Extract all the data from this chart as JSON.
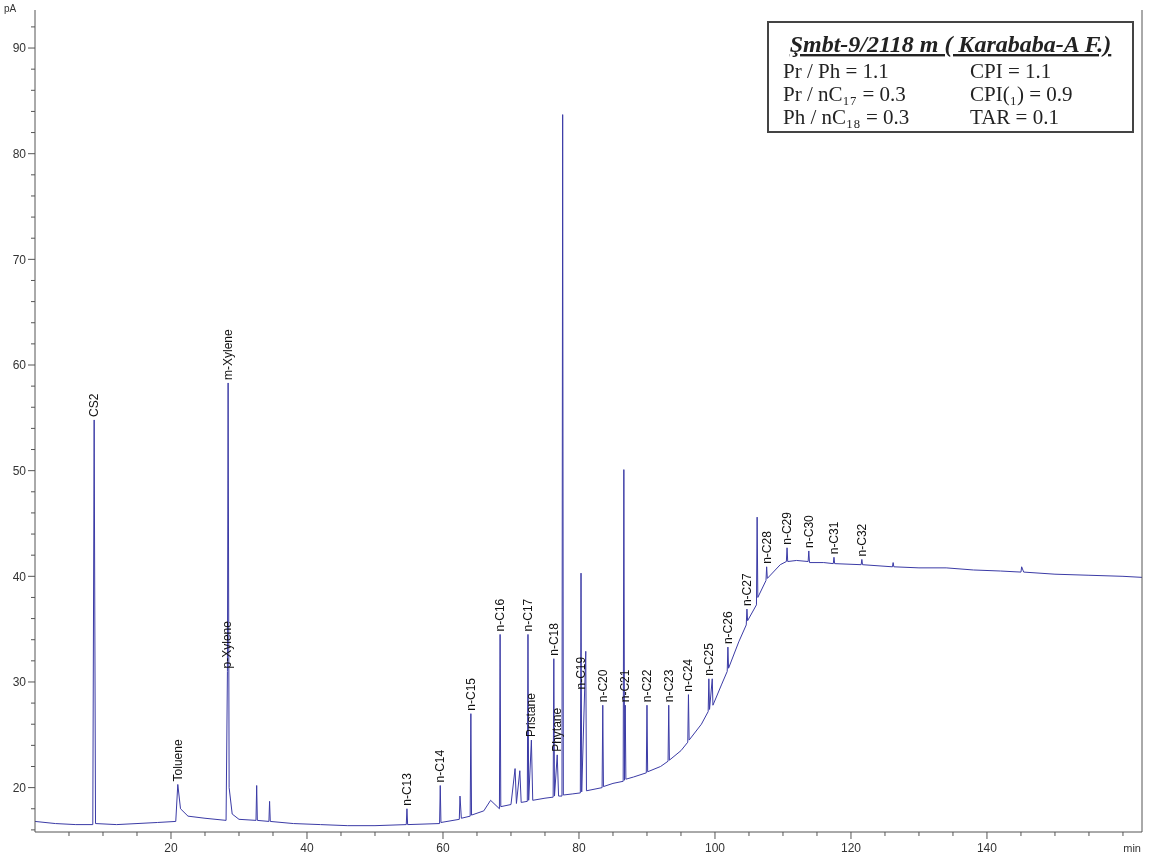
{
  "chart_data": {
    "type": "line",
    "title": "Şmbt-9/2118 m ( Karababa-A F.)",
    "xlabel": "min",
    "ylabel": "pA",
    "xlim": [
      0,
      162.8
    ],
    "ylim": [
      15.8,
      93.6
    ],
    "xticks": [
      {
        "value": 5,
        "label": null
      },
      {
        "value": 10,
        "label": null
      },
      {
        "value": 15,
        "label": null
      },
      20,
      {
        "value": 25,
        "label": null
      },
      {
        "value": 30,
        "label": null
      },
      {
        "value": 35,
        "label": null
      },
      40,
      {
        "value": 45,
        "label": null
      },
      {
        "value": 50,
        "label": null
      },
      {
        "value": 55,
        "label": null
      },
      60,
      {
        "value": 65,
        "label": null
      },
      {
        "value": 70,
        "label": null
      },
      {
        "value": 75,
        "label": null
      },
      80,
      {
        "value": 85,
        "label": null
      },
      {
        "value": 90,
        "label": null
      },
      {
        "value": 95,
        "label": null
      },
      100,
      {
        "value": 105,
        "label": null
      },
      {
        "value": 110,
        "label": null
      },
      {
        "value": 115,
        "label": null
      },
      120,
      {
        "value": 125,
        "label": null
      },
      {
        "value": 130,
        "label": null
      },
      {
        "value": 135,
        "label": null
      },
      140,
      {
        "value": 145,
        "label": null
      },
      {
        "value": 150,
        "label": null
      },
      {
        "value": 155,
        "label": null
      },
      {
        "value": 160,
        "label": null
      }
    ],
    "yticks": [
      {
        "value": 16,
        "label": null
      },
      {
        "value": 18,
        "label": null
      },
      20,
      {
        "value": 22,
        "label": null
      },
      {
        "value": 24,
        "label": null
      },
      {
        "value": 26,
        "label": null
      },
      {
        "value": 28,
        "label": null
      },
      30,
      {
        "value": 32,
        "label": null
      },
      {
        "value": 34,
        "label": null
      },
      {
        "value": 36,
        "label": null
      },
      {
        "value": 38,
        "label": null
      },
      40,
      {
        "value": 42,
        "label": null
      },
      {
        "value": 44,
        "label": null
      },
      {
        "value": 46,
        "label": null
      },
      {
        "value": 48,
        "label": null
      },
      50,
      {
        "value": 52,
        "label": null
      },
      {
        "value": 54,
        "label": null
      },
      {
        "value": 56,
        "label": null
      },
      {
        "value": 58,
        "label": null
      },
      60,
      {
        "value": 62,
        "label": null
      },
      {
        "value": 64,
        "label": null
      },
      {
        "value": 66,
        "label": null
      },
      {
        "value": 68,
        "label": null
      },
      70,
      {
        "value": 72,
        "label": null
      },
      {
        "value": 74,
        "label": null
      },
      {
        "value": 76,
        "label": null
      },
      {
        "value": 78,
        "label": null
      },
      80,
      {
        "value": 82,
        "label": null
      },
      {
        "value": 84,
        "label": null
      },
      {
        "value": 86,
        "label": null
      },
      {
        "value": 88,
        "label": null
      },
      90,
      {
        "value": 92,
        "label": null
      }
    ],
    "grid": false,
    "marker": "none",
    "line_style": "solid",
    "series": [
      {
        "color": "#3b3ba6",
        "x": [
          0,
          3,
          6,
          8.5,
          8.7,
          8.9,
          12,
          15,
          18,
          20.7,
          21.0,
          21.4,
          22.5,
          25,
          28.1,
          28.3,
          28.4,
          28.55,
          29,
          30,
          32.5,
          32.6,
          32.7,
          34.4,
          34.5,
          34.6,
          38,
          42,
          46,
          50,
          54.6,
          54.7,
          54.8,
          59.5,
          59.6,
          59.7,
          62.4,
          62.5,
          62.7,
          64.0,
          64.1,
          64.2,
          66,
          67,
          68.3,
          68.4,
          68.5,
          70,
          70.6,
          70.8,
          71.3,
          71.5,
          72.4,
          72.5,
          72.6,
          73.0,
          73.2,
          75,
          76.2,
          76.3,
          76.4,
          76.8,
          77.0,
          77.5,
          77.6,
          77.7,
          79,
          80.2,
          80.3,
          80.4,
          81.0,
          81.1,
          83.4,
          83.5,
          83.6,
          85,
          86.5,
          86.6,
          86.7,
          86.8,
          86.9,
          88,
          89.9,
          90.0,
          90.1,
          92,
          93.1,
          93.2,
          93.3,
          95,
          96.0,
          96.1,
          96.2,
          98,
          99.0,
          99.1,
          99.2,
          99.6,
          99.7,
          101,
          101.8,
          101.9,
          102.0,
          103.5,
          104.6,
          104.7,
          104.8,
          106.1,
          106.2,
          106.3,
          107.5,
          107.6,
          107.7,
          109.6,
          110.5,
          110.6,
          110.7,
          112,
          113.7,
          113.8,
          113.9,
          116,
          117.4,
          117.5,
          117.6,
          121.5,
          121.6,
          121.7,
          126.1,
          126.2,
          126.3,
          130,
          134,
          138,
          142,
          145.0,
          145.1,
          145.4,
          150,
          155,
          160,
          162.8
        ],
        "values": [
          16.8,
          16.6,
          16.5,
          16.5,
          54.8,
          16.6,
          16.5,
          16.6,
          16.7,
          16.8,
          20.3,
          18.0,
          17.3,
          17.1,
          16.9,
          31.0,
          58.3,
          20.0,
          17.5,
          17.0,
          16.9,
          20.2,
          16.9,
          16.8,
          18.7,
          16.8,
          16.6,
          16.5,
          16.4,
          16.4,
          16.5,
          18.0,
          16.5,
          16.6,
          20.2,
          16.7,
          17.0,
          19.2,
          17.1,
          17.3,
          27.0,
          17.4,
          17.8,
          18.8,
          18.0,
          34.5,
          18.2,
          18.4,
          21.8,
          18.5,
          21.6,
          18.6,
          18.7,
          34.5,
          18.8,
          24.5,
          18.8,
          19.0,
          19.1,
          32.2,
          19.2,
          23.1,
          19.2,
          19.2,
          83.7,
          19.3,
          19.4,
          19.5,
          40.3,
          19.6,
          32.9,
          19.7,
          20.0,
          27.8,
          20.1,
          20.4,
          20.6,
          50.1,
          20.7,
          27.8,
          20.8,
          21.0,
          21.4,
          27.8,
          21.5,
          22.0,
          22.5,
          27.8,
          22.6,
          23.5,
          24.3,
          28.8,
          24.5,
          26.0,
          27.2,
          30.3,
          27.4,
          30.3,
          27.8,
          29.8,
          31.0,
          33.3,
          31.3,
          33.8,
          35.4,
          36.9,
          35.8,
          37.3,
          45.6,
          38.0,
          39.6,
          40.9,
          39.8,
          41.1,
          41.4,
          42.7,
          41.4,
          41.5,
          41.4,
          42.4,
          41.3,
          41.3,
          41.2,
          41.8,
          41.2,
          41.1,
          41.6,
          41.1,
          40.9,
          41.3,
          40.9,
          40.8,
          40.8,
          40.6,
          40.5,
          40.4,
          40.9,
          40.4,
          40.2,
          40.1,
          40.0,
          39.9
        ]
      }
    ],
    "annotations": [
      "Pr / Ph = 1.1",
      "CPI = 1.1",
      "Pr / nC₁₇ = 0.3",
      "CPI(₁) = 0.9",
      "Ph / nC₁₈ = 0.3",
      "TAR = 0.1",
      {
        "text": "CS2",
        "x": 8.7,
        "y": 54.8
      },
      {
        "text": "Toluene",
        "x": 21.0,
        "y": 20.3
      },
      {
        "text": "m-Xylene",
        "x": 28.4,
        "y": 58.3
      },
      {
        "text": "p-Xylene",
        "x": 28.3,
        "y": 31.0
      },
      {
        "text": "n-C13",
        "x": 54.7,
        "y": 18.0
      },
      {
        "text": "n-C14",
        "x": 59.6,
        "y": 20.2
      },
      {
        "text": "n-C15",
        "x": 64.1,
        "y": 27.0
      },
      {
        "text": "n-C16",
        "x": 68.4,
        "y": 34.5
      },
      {
        "text": "n-C17",
        "x": 72.5,
        "y": 34.5
      },
      {
        "text": "Pristane",
        "x": 73.0,
        "y": 24.5
      },
      {
        "text": "n-C18",
        "x": 76.3,
        "y": 32.2
      },
      {
        "text": "Phytane",
        "x": 76.8,
        "y": 23.1
      },
      {
        "text": "n-C19",
        "x": 80.3,
        "y": 29.0
      },
      {
        "text": "n-C20",
        "x": 83.5,
        "y": 27.8
      },
      {
        "text": "n-C21",
        "x": 86.8,
        "y": 27.8
      },
      {
        "text": "n-C22",
        "x": 90.0,
        "y": 27.8
      },
      {
        "text": "n-C23",
        "x": 93.2,
        "y": 27.8
      },
      {
        "text": "n-C24",
        "x": 96.1,
        "y": 28.8
      },
      {
        "text": "n-C25",
        "x": 99.1,
        "y": 30.3
      },
      {
        "text": "n-C26",
        "x": 101.9,
        "y": 33.3
      },
      {
        "text": "n-C27",
        "x": 104.7,
        "y": 36.9
      },
      {
        "text": "n-C28",
        "x": 107.6,
        "y": 40.9
      },
      {
        "text": "n-C29",
        "x": 110.6,
        "y": 42.7
      },
      {
        "text": "n-C30",
        "x": 113.8,
        "y": 42.4
      },
      {
        "text": "n-C31",
        "x": 117.5,
        "y": 41.8
      },
      {
        "text": "n-C32",
        "x": 121.6,
        "y": 41.6
      }
    ]
  }
}
